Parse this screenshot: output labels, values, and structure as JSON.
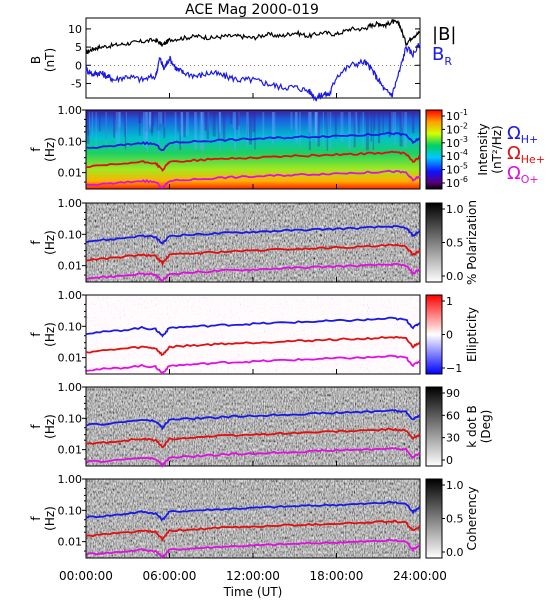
{
  "title": "ACE Mag 2000-019",
  "x_axis": {
    "label": "Time (UT)",
    "ticks": [
      "00:00:00",
      "06:00:00",
      "12:00:00",
      "18:00:00",
      "24:00:00"
    ]
  },
  "legend_top": {
    "B": {
      "text": "|B|",
      "color": "#000000"
    },
    "BR": {
      "text": "B",
      "sub": "R",
      "color": "#1a1ae6"
    }
  },
  "legend_gyro": [
    {
      "sym": "Ω",
      "sub": "H+",
      "color": "#1a1ae6"
    },
    {
      "sym": "Ω",
      "sub": "He+",
      "color": "#e01010"
    },
    {
      "sym": "Ω",
      "sub": "O+",
      "color": "#e010e0"
    }
  ],
  "panels": [
    {
      "id": "intensity",
      "ylabel": "f",
      "yunit": "(Hz)",
      "cb_label": "Intensity",
      "cb_unit": "(nT²/Hz)",
      "cb_ticks": [
        "10",
        "10",
        "10",
        "10",
        "10",
        "10"
      ],
      "cb_exps": [
        "-1",
        "-2",
        "-3",
        "-4",
        "-5",
        "-6"
      ],
      "colormap": "rainbow"
    },
    {
      "id": "polarization",
      "ylabel": "f",
      "yunit": "(Hz)",
      "cb_label": "% Polarization",
      "cb_unit": "",
      "cb_ticks": [
        "1.0",
        "0.5",
        "0.0"
      ],
      "colormap": "gray"
    },
    {
      "id": "ellipticity",
      "ylabel": "f",
      "yunit": "(Hz)",
      "cb_label": "Ellipticity",
      "cb_unit": "",
      "cb_ticks": [
        "1",
        "0",
        "−1"
      ],
      "colormap": "bwr"
    },
    {
      "id": "kdotb",
      "ylabel": "f",
      "yunit": "(Hz)",
      "cb_label": "k dot B",
      "cb_unit": "(Deg)",
      "cb_ticks": [
        "90",
        "60",
        "30",
        "0"
      ],
      "colormap": "gray"
    },
    {
      "id": "coherency",
      "ylabel": "f",
      "yunit": "(Hz)",
      "cb_label": "Coherency",
      "cb_unit": "",
      "cb_ticks": [
        "1.0",
        "0.5",
        "0.0"
      ],
      "colormap": "gray"
    }
  ],
  "freq_ticks": [
    "1.00",
    "0.10",
    "0.01"
  ],
  "chart_data": [
    {
      "type": "line",
      "title": "ACE Mag 2000-019",
      "xlabel": "Time (UT)",
      "ylabel": "B (nT)",
      "xlim": [
        0,
        24
      ],
      "ylim": [
        -9,
        13
      ],
      "yticks": [
        "10",
        "5",
        "0",
        "-5"
      ],
      "series": [
        {
          "name": "|B|",
          "color": "#000000",
          "x": [
            0,
            0.5,
            1,
            2,
            3,
            4,
            5,
            5.5,
            6,
            7,
            8,
            9,
            10,
            11,
            12,
            13,
            14,
            15,
            16,
            17,
            18,
            19,
            20,
            20.5,
            21,
            21.5,
            22,
            22.5,
            23,
            23.5,
            24
          ],
          "y": [
            3.5,
            4.5,
            5,
            5.5,
            6,
            6.5,
            7,
            5.5,
            7,
            7.5,
            8,
            7.5,
            8,
            8,
            7.5,
            8.5,
            8,
            9,
            8,
            9,
            8.5,
            10,
            10,
            11,
            11.5,
            11,
            12,
            11.5,
            6,
            8,
            9
          ]
        },
        {
          "name": "B",
          "color": "#1a1ae6",
          "x": [
            0,
            0.5,
            1,
            1.5,
            2,
            3,
            4,
            5,
            5.3,
            5.6,
            6,
            6.5,
            7,
            8,
            9,
            10,
            11,
            12,
            13,
            14,
            15,
            16,
            16.5,
            17,
            17.5,
            18,
            19,
            20,
            20.5,
            21,
            21.5,
            22,
            22.5,
            23,
            23.5,
            24
          ],
          "y": [
            -1,
            -2.5,
            -2,
            -3,
            -4,
            -3,
            -4,
            -3,
            2,
            -1,
            2,
            -1,
            -2,
            -3,
            -2,
            -3,
            -4,
            -4,
            -5,
            -6,
            -6,
            -7,
            -9,
            -8,
            -8,
            -3,
            0,
            1,
            -1,
            -4,
            -7,
            -8,
            -2,
            5,
            3,
            6
          ]
        }
      ]
    },
    {
      "type": "heatmap",
      "title": "Intensity",
      "ylabel": "f (Hz)",
      "xlim": [
        0,
        24
      ],
      "ylim": [
        0.003,
        1.0
      ],
      "yscale": "log",
      "colorbar": {
        "label": "Intensity (nT²/Hz)",
        "range": [
          1e-06,
          0.1
        ]
      },
      "gyro_lines": [
        {
          "name": "ΩH+",
          "color": "#1a1ae6",
          "x": [
            0,
            2,
            4,
            5,
            5.5,
            6,
            8,
            10,
            12,
            14,
            16,
            18,
            20,
            22,
            23,
            23.5,
            24
          ],
          "y": [
            0.06,
            0.07,
            0.09,
            0.08,
            0.05,
            0.09,
            0.1,
            0.11,
            0.12,
            0.13,
            0.14,
            0.15,
            0.16,
            0.18,
            0.16,
            0.09,
            0.13
          ]
        },
        {
          "name": "ΩHe+",
          "color": "#e01010",
          "x": [
            0,
            2,
            4,
            5,
            5.5,
            6,
            8,
            10,
            12,
            14,
            16,
            18,
            20,
            22,
            23,
            23.5,
            24
          ],
          "y": [
            0.015,
            0.018,
            0.022,
            0.02,
            0.012,
            0.022,
            0.025,
            0.028,
            0.03,
            0.033,
            0.035,
            0.038,
            0.04,
            0.045,
            0.04,
            0.022,
            0.032
          ]
        },
        {
          "name": "ΩO+",
          "color": "#e010e0",
          "x": [
            0,
            2,
            4,
            5,
            5.5,
            6,
            8,
            10,
            12,
            14,
            16,
            18,
            20,
            22,
            23,
            23.5,
            24
          ],
          "y": [
            0.004,
            0.0045,
            0.0055,
            0.005,
            0.0032,
            0.0055,
            0.0062,
            0.007,
            0.0075,
            0.0082,
            0.0088,
            0.0095,
            0.01,
            0.011,
            0.01,
            0.0056,
            0.008
          ]
        }
      ]
    },
    {
      "type": "heatmap",
      "title": "% Polarization",
      "ylabel": "f (Hz)",
      "xlim": [
        0,
        24
      ],
      "ylim": [
        0.003,
        1.0
      ],
      "yscale": "log",
      "colorbar": {
        "label": "% Polarization",
        "range": [
          0,
          1
        ]
      }
    },
    {
      "type": "heatmap",
      "title": "Ellipticity",
      "ylabel": "f (Hz)",
      "xlim": [
        0,
        24
      ],
      "ylim": [
        0.003,
        1.0
      ],
      "yscale": "log",
      "colorbar": {
        "label": "Ellipticity",
        "range": [
          -1,
          1
        ]
      }
    },
    {
      "type": "heatmap",
      "title": "k dot B (Deg)",
      "ylabel": "f (Hz)",
      "xlim": [
        0,
        24
      ],
      "ylim": [
        0.003,
        1.0
      ],
      "yscale": "log",
      "colorbar": {
        "label": "k dot B (Deg)",
        "range": [
          0,
          90
        ]
      }
    },
    {
      "type": "heatmap",
      "title": "Coherency",
      "ylabel": "f (Hz)",
      "xlim": [
        0,
        24
      ],
      "ylim": [
        0.003,
        1.0
      ],
      "yscale": "log",
      "colorbar": {
        "label": "Coherency",
        "range": [
          0,
          1
        ]
      }
    }
  ]
}
